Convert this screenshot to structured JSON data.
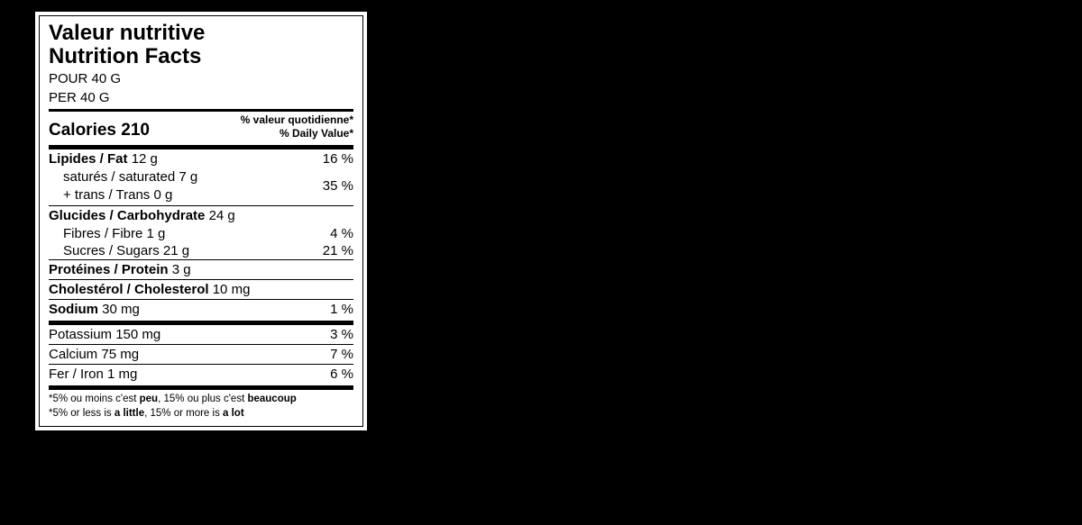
{
  "title_fr": "Valeur nutritive",
  "title_en": "Nutrition Facts",
  "serving_fr": "POUR 40 G",
  "serving_en": "PER 40 G",
  "calories": {
    "label": "Calories",
    "value": "210"
  },
  "dv_header_fr": "% valeur quotidienne*",
  "dv_header_en": "% Daily Value*",
  "fat": {
    "label_bold": "Lipides / Fat",
    "amount": "12 g",
    "dv": "16 %"
  },
  "saturated": {
    "label": "saturés / saturated",
    "amount": "7 g"
  },
  "trans": {
    "label": "+ trans / Trans",
    "amount": "0 g"
  },
  "sat_trans_dv": "35 %",
  "carb": {
    "label_bold": "Glucides / Carbohydrate",
    "amount": "24 g"
  },
  "fibre": {
    "label": "Fibres / Fibre",
    "amount": "1 g",
    "dv": "4 %"
  },
  "sugars": {
    "label": "Sucres / Sugars",
    "amount": "21 g",
    "dv": "21 %"
  },
  "protein": {
    "label_bold": "Protéines / Protein",
    "amount": "3 g"
  },
  "cholesterol": {
    "label_bold": "Cholestérol / Cholesterol",
    "amount": "10 mg"
  },
  "sodium": {
    "label_bold": "Sodium",
    "amount": "30 mg",
    "dv": "1 %"
  },
  "potassium": {
    "label": "Potassium",
    "amount": "150 mg",
    "dv": "3 %"
  },
  "calcium": {
    "label": "Calcium",
    "amount": "75 mg",
    "dv": "7 %"
  },
  "iron": {
    "label": "Fer / Iron",
    "amount": "1 mg",
    "dv": "6 %"
  },
  "footnote_fr_pre": "*5% ou moins c'est ",
  "footnote_fr_peu": "peu",
  "footnote_fr_mid": ", 15% ou plus c'est ",
  "footnote_fr_beaucoup": "beaucoup",
  "footnote_en_pre": "*5% or less is ",
  "footnote_en_little": "a little",
  "footnote_en_mid": ", 15% or more is ",
  "footnote_en_lot": "a lot"
}
